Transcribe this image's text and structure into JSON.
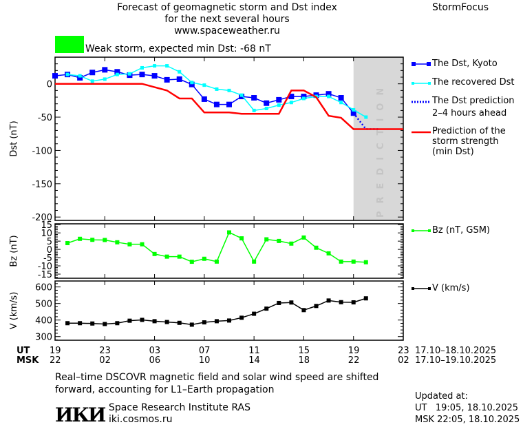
{
  "header": {
    "title_lines": [
      "Forecast of geomagnetic storm and Dst index",
      "for the next several hours",
      "www.spaceweather.ru"
    ],
    "brand": "StormFocus",
    "status_text": "Weak storm, expected min Dst: -68 nT",
    "status_color": "#00ff00"
  },
  "colors": {
    "kyoto": "#0000ff",
    "recovered": "#00ffff",
    "prediction": "#0000ff",
    "strength": "#ff0000",
    "bz": "#00ff00",
    "v": "#000000",
    "shade": "#d8d8d8"
  },
  "chart_data": [
    {
      "type": "line",
      "ylabel": "Dst (nT)",
      "ylim": [
        -205,
        40
      ],
      "xlim": [
        0,
        28
      ],
      "x_unit": "hours since 19 UT 17.10.2025",
      "yticks": [
        0,
        -50,
        -100,
        -150,
        -200
      ],
      "shaded_prediction_range": [
        24,
        28
      ],
      "shaded_label": "PREDICTION",
      "series": [
        {
          "name": "The Dst, Kyoto",
          "x": [
            0,
            1,
            2,
            3,
            4,
            5,
            6,
            7,
            8,
            9,
            10,
            11,
            12,
            13,
            14,
            15,
            16,
            17,
            18,
            19,
            20,
            21,
            22,
            23,
            24
          ],
          "values": [
            12,
            14,
            9,
            17,
            21,
            18,
            13,
            14,
            12,
            6,
            7,
            -1,
            -23,
            -31,
            -31,
            -19,
            -21,
            -29,
            -24,
            -19,
            -19,
            -17,
            -15,
            -21,
            -44
          ]
        },
        {
          "name": "The recovered Dst",
          "x": [
            1,
            2,
            3,
            4,
            5,
            6,
            7,
            8,
            9,
            10,
            11,
            12,
            13,
            14,
            15,
            16,
            17,
            18,
            19,
            20,
            21,
            22,
            23,
            24,
            25
          ],
          "values": [
            14,
            12,
            4,
            7,
            14,
            15,
            24,
            27,
            27,
            18,
            2,
            -2,
            -8,
            -10,
            -17,
            -40,
            -37,
            -32,
            -28,
            -22,
            -19,
            -19,
            -28,
            -39,
            -50
          ]
        },
        {
          "name": "The Dst prediction 2-4 hours ahead",
          "x": [
            24,
            25,
            26
          ],
          "values": [
            -44,
            -68,
            -68
          ]
        },
        {
          "name": "Prediction of the storm strength (min Dst)",
          "x": [
            0,
            7,
            8,
            9,
            10,
            11,
            12,
            14,
            15,
            18,
            19,
            20,
            21,
            22,
            23,
            24,
            28
          ],
          "values": [
            0,
            0,
            -5,
            -10,
            -22,
            -22,
            -43,
            -43,
            -45,
            -45,
            -10,
            -10,
            -20,
            -48,
            -51,
            -68,
            -68
          ]
        }
      ]
    },
    {
      "type": "line",
      "ylabel": "Bz (nT)",
      "ylim": [
        -17.5,
        15.5
      ],
      "yticks": [
        15,
        10,
        5,
        0,
        -5,
        -10,
        -15
      ],
      "series": [
        {
          "name": "Bz (nT, GSM)",
          "x": [
            1,
            2,
            3,
            4,
            5,
            6,
            7,
            8,
            9,
            10,
            11,
            12,
            13,
            14,
            15,
            16,
            17,
            18,
            19,
            20,
            21,
            22,
            23,
            24,
            25
          ],
          "values": [
            3.8,
            6.4,
            5.8,
            5.7,
            4.3,
            3.1,
            3.1,
            -2.8,
            -4.4,
            -4.4,
            -7.5,
            -5.7,
            -7.4,
            10.3,
            6.7,
            -7.4,
            6.1,
            5.1,
            3.5,
            7.2,
            1,
            -2.4,
            -7.4,
            -7.4,
            -7.8
          ]
        }
      ]
    },
    {
      "type": "line",
      "ylabel": "V (km/s)",
      "ylim": [
        278,
        636
      ],
      "yticks": [
        600,
        500,
        400,
        300
      ],
      "series": [
        {
          "name": "V (km/s)",
          "x": [
            1,
            2,
            3,
            4,
            5,
            6,
            7,
            8,
            9,
            10,
            11,
            12,
            13,
            14,
            15,
            16,
            17,
            18,
            19,
            20,
            21,
            22,
            23,
            24,
            25
          ],
          "values": [
            381,
            381,
            379,
            376,
            381,
            396,
            401,
            393,
            388,
            383,
            372,
            386,
            393,
            397,
            414,
            438,
            469,
            503,
            506,
            460,
            485,
            518,
            508,
            507,
            531
          ]
        }
      ]
    }
  ],
  "legend": {
    "kyoto": "The Dst, Kyoto",
    "recovered": "The recovered Dst",
    "prediction_1": "The Dst prediction",
    "prediction_2": "2–4 hours ahead",
    "strength_1": "Prediction of the",
    "strength_2": "storm strength",
    "strength_3": "(min Dst)",
    "bz": "Bz (nT, GSM)",
    "v": "V (km/s)"
  },
  "xaxis": {
    "ut_label": "UT",
    "msk_label": "MSK",
    "ut_ticks": [
      "19",
      "23",
      "03",
      "07",
      "11",
      "15",
      "19",
      "23"
    ],
    "msk_ticks": [
      "22",
      "02",
      "06",
      "10",
      "14",
      "18",
      "22",
      "02"
    ],
    "ut_range": "17.10–18.10.2025",
    "msk_range": "17.10–19.10.2025"
  },
  "footer": {
    "note_1": "Real–time DSCOVR magnetic field and solar wind speed are shifted",
    "note_2": "forward, accounting for L1–Earth propagation",
    "logo": "ИКИ",
    "institute": "Space Research Institute RAS",
    "site": "iki.cosmos.ru",
    "updated_label": "Updated at:",
    "updated_ut": "UT   19:05, 18.10.2025",
    "updated_msk": "MSK 22:05, 18.10.2025"
  }
}
